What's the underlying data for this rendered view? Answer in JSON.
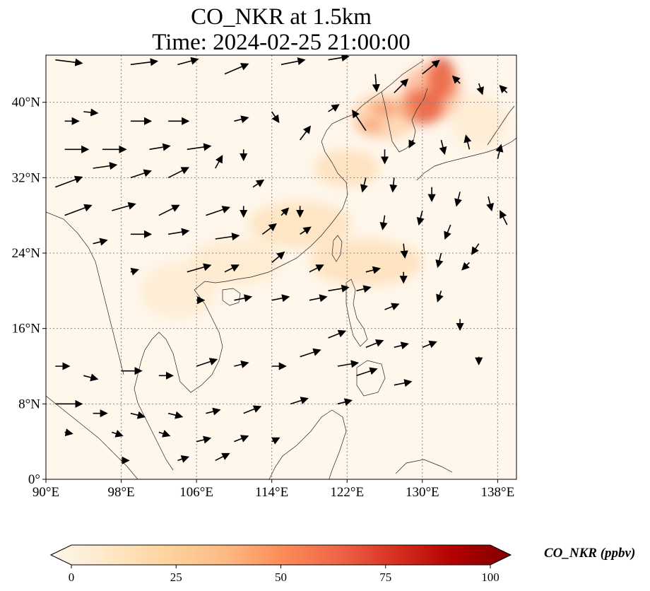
{
  "title": {
    "line1": "CO_NKR at 1.5km",
    "line2": "Time: 2024-02-25 21:00:00"
  },
  "map": {
    "extent": {
      "lon_min": 90,
      "lon_max": 140,
      "lat_min": 0,
      "lat_max": 45
    },
    "lon_ticks": [
      {
        "value": 90,
        "label": "90°E"
      },
      {
        "value": 98,
        "label": "98°E"
      },
      {
        "value": 106,
        "label": "106°E"
      },
      {
        "value": 114,
        "label": "114°E"
      },
      {
        "value": 122,
        "label": "122°E"
      },
      {
        "value": 130,
        "label": "130°E"
      },
      {
        "value": 138,
        "label": "138°E"
      }
    ],
    "lat_ticks": [
      {
        "value": 0,
        "label": "0°"
      },
      {
        "value": 8,
        "label": "8°N"
      },
      {
        "value": 16,
        "label": "16°N"
      },
      {
        "value": 24,
        "label": "24°N"
      },
      {
        "value": 32,
        "label": "32°N"
      },
      {
        "value": 40,
        "label": "40°N"
      }
    ],
    "gridlines": true,
    "background_color": "#fff7ec",
    "plumes": [
      {
        "lon": 130,
        "lat": 39.5,
        "rlon": 2.2,
        "rlat": 1.8,
        "color": "#d7301f",
        "opacity": 0.85
      },
      {
        "lon": 132,
        "lat": 42.5,
        "rlon": 1.5,
        "rlat": 2.2,
        "color": "#d7301f",
        "opacity": 0.8
      },
      {
        "lon": 131,
        "lat": 41,
        "rlon": 3.2,
        "rlat": 3.0,
        "color": "#fc8d59",
        "opacity": 0.5
      },
      {
        "lon": 126,
        "lat": 39.3,
        "rlon": 1.6,
        "rlat": 0.8,
        "color": "#ef6548",
        "opacity": 0.75
      },
      {
        "lon": 124.5,
        "lat": 37.5,
        "rlon": 1.4,
        "rlat": 0.6,
        "color": "#ef6548",
        "opacity": 0.75
      },
      {
        "lon": 126,
        "lat": 38.5,
        "rlon": 3.5,
        "rlat": 2.5,
        "color": "#fdbb84",
        "opacity": 0.5
      },
      {
        "lon": 122,
        "lat": 33,
        "rlon": 3.5,
        "rlat": 2.0,
        "color": "#fdd49e",
        "opacity": 0.55
      },
      {
        "lon": 117,
        "lat": 27,
        "rlon": 5.5,
        "rlat": 2.5,
        "color": "#fdd49e",
        "opacity": 0.5
      },
      {
        "lon": 124,
        "lat": 23,
        "rlon": 6.0,
        "rlat": 2.5,
        "color": "#fdd49e",
        "opacity": 0.55
      },
      {
        "lon": 110,
        "lat": 23,
        "rlon": 5.0,
        "rlat": 2.5,
        "color": "#fee8c8",
        "opacity": 0.7
      },
      {
        "lon": 104,
        "lat": 20,
        "rlon": 4.0,
        "rlat": 3.0,
        "color": "#fee8c8",
        "opacity": 0.6
      },
      {
        "lon": 136,
        "lat": 38,
        "rlon": 3.0,
        "rlat": 3.0,
        "color": "#fee8c8",
        "opacity": 0.6
      }
    ],
    "wind_vectors": [
      [
        91,
        44.5,
        4,
        -0.5
      ],
      [
        99,
        44,
        4,
        0.5
      ],
      [
        104,
        44,
        3,
        0.8
      ],
      [
        109,
        43,
        3.5,
        1.5
      ],
      [
        115,
        44,
        3.5,
        0.7
      ],
      [
        120,
        44.5,
        3,
        0.5
      ],
      [
        92,
        38,
        2,
        0
      ],
      [
        94,
        39,
        2,
        -0.2
      ],
      [
        99,
        38,
        3,
        0
      ],
      [
        103,
        38,
        3,
        0
      ],
      [
        110,
        38,
        2,
        0.5
      ],
      [
        114,
        39,
        1,
        -1.5
      ],
      [
        120,
        39,
        1.5,
        1
      ],
      [
        92,
        35,
        3.5,
        0
      ],
      [
        96,
        35,
        3.5,
        0
      ],
      [
        101,
        35,
        3,
        0.5
      ],
      [
        105,
        35,
        3.5,
        0.5
      ],
      [
        111,
        35,
        0,
        -1.5
      ],
      [
        117,
        36,
        1.5,
        2
      ],
      [
        91,
        31,
        4,
        1.5
      ],
      [
        95,
        33,
        3.5,
        0.5
      ],
      [
        99,
        32,
        3,
        1
      ],
      [
        103,
        32,
        3,
        1.5
      ],
      [
        108,
        33,
        1,
        1.8
      ],
      [
        112,
        31,
        1.5,
        1
      ],
      [
        92,
        28,
        4,
        1.5
      ],
      [
        97,
        28.5,
        3.5,
        1
      ],
      [
        102,
        28,
        3,
        1.5
      ],
      [
        107,
        28,
        3.5,
        1.2
      ],
      [
        111,
        29,
        0,
        -1.5
      ],
      [
        115,
        28,
        1,
        1
      ],
      [
        117,
        29,
        0,
        -1.5
      ],
      [
        95,
        25,
        2,
        0.5
      ],
      [
        99,
        26,
        3,
        0
      ],
      [
        103,
        26,
        3,
        0.5
      ],
      [
        108,
        25.5,
        3.5,
        0.5
      ],
      [
        113,
        26,
        2,
        1.5
      ],
      [
        117,
        26,
        1.5,
        1
      ],
      [
        99,
        22,
        1,
        0.3
      ],
      [
        105,
        22,
        3.5,
        1
      ],
      [
        109,
        22,
        2,
        1
      ],
      [
        114,
        23,
        1.8,
        1.5
      ],
      [
        118,
        22,
        2,
        1
      ],
      [
        120,
        20,
        3,
        0.5
      ],
      [
        124,
        22,
        2,
        0.5
      ],
      [
        106,
        19,
        1,
        0
      ],
      [
        110,
        19,
        2.5,
        0.5
      ],
      [
        114,
        19,
        2.5,
        0.5
      ],
      [
        118,
        19,
        2.5,
        0.5
      ],
      [
        123,
        20,
        2,
        0.5
      ],
      [
        126,
        18,
        2,
        0.8
      ],
      [
        91,
        12,
        2,
        0
      ],
      [
        94,
        11,
        2,
        -0.5
      ],
      [
        98,
        11.5,
        3,
        0
      ],
      [
        102,
        11,
        2,
        0
      ],
      [
        106,
        12,
        3,
        1
      ],
      [
        110,
        12,
        2,
        0.5
      ],
      [
        114,
        12,
        2,
        0
      ],
      [
        117,
        13,
        3,
        1
      ],
      [
        121,
        12,
        3,
        0.5
      ],
      [
        124,
        14,
        2.5,
        1
      ],
      [
        127,
        14,
        2,
        0.5
      ],
      [
        130,
        14,
        2,
        0.8
      ],
      [
        91,
        8,
        4,
        0
      ],
      [
        95,
        7,
        2,
        0
      ],
      [
        99,
        7,
        2,
        -0.5
      ],
      [
        103,
        7,
        2,
        -0.5
      ],
      [
        107,
        7,
        2,
        0.5
      ],
      [
        111,
        7,
        2.5,
        1
      ],
      [
        116,
        8,
        2.5,
        0.8
      ],
      [
        121,
        8,
        2,
        0.5
      ],
      [
        92,
        5,
        1,
        -0.2
      ],
      [
        97,
        5,
        1.5,
        -0.5
      ],
      [
        102,
        5,
        1.5,
        -0.5
      ],
      [
        106,
        4,
        2,
        0.5
      ],
      [
        110,
        4,
        2,
        0.8
      ],
      [
        114,
        4,
        1,
        0.5
      ],
      [
        98,
        2,
        1,
        0
      ],
      [
        104,
        2,
        1.5,
        0.5
      ],
      [
        108,
        2,
        2,
        1
      ],
      [
        125,
        43,
        0.2,
        -2.5
      ],
      [
        127,
        41,
        2,
        2
      ],
      [
        130,
        43,
        2.5,
        2
      ],
      [
        134,
        42,
        -1,
        1
      ],
      [
        136,
        42,
        0.5,
        -1.5
      ],
      [
        139,
        41,
        -1,
        1
      ],
      [
        124,
        37,
        -2,
        3
      ],
      [
        126,
        35,
        0,
        -2
      ],
      [
        129,
        36,
        -0.5,
        -1
      ],
      [
        132,
        36,
        0.5,
        -2
      ],
      [
        135,
        35,
        -0.5,
        2
      ],
      [
        138,
        34,
        0.5,
        2
      ],
      [
        124,
        32,
        -0.5,
        -2
      ],
      [
        127,
        32,
        -0.2,
        -2
      ],
      [
        131,
        31,
        0,
        -2
      ],
      [
        134,
        30.5,
        -0.5,
        -2
      ],
      [
        137,
        30,
        0.5,
        -2
      ],
      [
        139,
        27,
        -1,
        2
      ],
      [
        126,
        28,
        -0.3,
        -2
      ],
      [
        130,
        28.5,
        -0.5,
        -2
      ],
      [
        133,
        27,
        -0.8,
        -2
      ],
      [
        136,
        25,
        -1,
        -1.5
      ],
      [
        128,
        25,
        0.2,
        -2
      ],
      [
        132,
        24,
        -0.5,
        -2
      ],
      [
        135,
        23,
        -1,
        -1
      ],
      [
        128,
        22,
        0,
        -1.5
      ],
      [
        132,
        20,
        -0.5,
        -1.5
      ],
      [
        134,
        17,
        0,
        -1.5
      ],
      [
        120,
        15,
        2.5,
        1
      ],
      [
        123,
        11,
        3,
        1
      ],
      [
        127,
        10,
        2.5,
        0.5
      ],
      [
        136,
        13,
        0,
        -1
      ]
    ]
  },
  "colorbar": {
    "min": 0,
    "max": 100,
    "ticks": [
      {
        "value": 0,
        "label": "0"
      },
      {
        "value": 25,
        "label": "25"
      },
      {
        "value": 50,
        "label": "50"
      },
      {
        "value": 75,
        "label": "75"
      },
      {
        "value": 100,
        "label": "100"
      }
    ],
    "colors": [
      "#fff7ec",
      "#fee8c8",
      "#fdd49e",
      "#fdbb84",
      "#fc8d59",
      "#ef6548",
      "#d7301f",
      "#b30000",
      "#7f0000"
    ],
    "label": "CO_NKR (ppbv)"
  }
}
